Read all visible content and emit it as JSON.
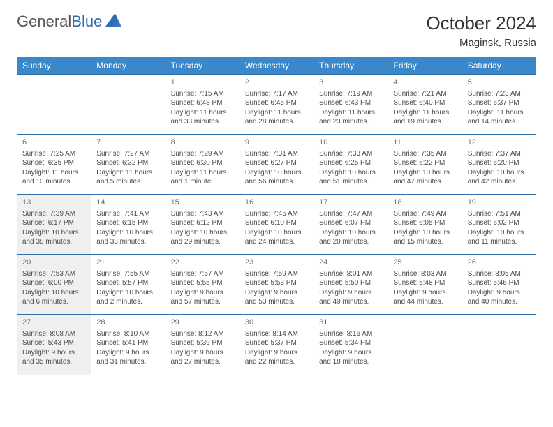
{
  "logo": {
    "word1": "General",
    "word2": "Blue"
  },
  "title": {
    "month_year": "October 2024",
    "location": "Maginsk, Russia"
  },
  "weekdays": [
    "Sunday",
    "Monday",
    "Tuesday",
    "Wednesday",
    "Thursday",
    "Friday",
    "Saturday"
  ],
  "colors": {
    "header_bg": "#3a87ca",
    "header_text": "#ffffff",
    "border": "#2f6fa8",
    "shaded_bg": "#f0f0f0",
    "body_text": "#4a4a4a",
    "logo_gray": "#555555",
    "logo_blue": "#2f6fa8"
  },
  "cell_fontsize": 10,
  "weeks": [
    [
      {
        "empty": true,
        "shaded": false
      },
      {
        "empty": true,
        "shaded": false
      },
      {
        "day": "1",
        "sunrise": "Sunrise: 7:15 AM",
        "sunset": "Sunset: 6:48 PM",
        "daylight": "Daylight: 11 hours and 33 minutes.",
        "shaded": false
      },
      {
        "day": "2",
        "sunrise": "Sunrise: 7:17 AM",
        "sunset": "Sunset: 6:45 PM",
        "daylight": "Daylight: 11 hours and 28 minutes.",
        "shaded": false
      },
      {
        "day": "3",
        "sunrise": "Sunrise: 7:19 AM",
        "sunset": "Sunset: 6:43 PM",
        "daylight": "Daylight: 11 hours and 23 minutes.",
        "shaded": false
      },
      {
        "day": "4",
        "sunrise": "Sunrise: 7:21 AM",
        "sunset": "Sunset: 6:40 PM",
        "daylight": "Daylight: 11 hours and 19 minutes.",
        "shaded": false
      },
      {
        "day": "5",
        "sunrise": "Sunrise: 7:23 AM",
        "sunset": "Sunset: 6:37 PM",
        "daylight": "Daylight: 11 hours and 14 minutes.",
        "shaded": false
      }
    ],
    [
      {
        "day": "6",
        "sunrise": "Sunrise: 7:25 AM",
        "sunset": "Sunset: 6:35 PM",
        "daylight": "Daylight: 11 hours and 10 minutes.",
        "shaded": false
      },
      {
        "day": "7",
        "sunrise": "Sunrise: 7:27 AM",
        "sunset": "Sunset: 6:32 PM",
        "daylight": "Daylight: 11 hours and 5 minutes.",
        "shaded": false
      },
      {
        "day": "8",
        "sunrise": "Sunrise: 7:29 AM",
        "sunset": "Sunset: 6:30 PM",
        "daylight": "Daylight: 11 hours and 1 minute.",
        "shaded": false
      },
      {
        "day": "9",
        "sunrise": "Sunrise: 7:31 AM",
        "sunset": "Sunset: 6:27 PM",
        "daylight": "Daylight: 10 hours and 56 minutes.",
        "shaded": false
      },
      {
        "day": "10",
        "sunrise": "Sunrise: 7:33 AM",
        "sunset": "Sunset: 6:25 PM",
        "daylight": "Daylight: 10 hours and 51 minutes.",
        "shaded": false
      },
      {
        "day": "11",
        "sunrise": "Sunrise: 7:35 AM",
        "sunset": "Sunset: 6:22 PM",
        "daylight": "Daylight: 10 hours and 47 minutes.",
        "shaded": false
      },
      {
        "day": "12",
        "sunrise": "Sunrise: 7:37 AM",
        "sunset": "Sunset: 6:20 PM",
        "daylight": "Daylight: 10 hours and 42 minutes.",
        "shaded": false
      }
    ],
    [
      {
        "day": "13",
        "sunrise": "Sunrise: 7:39 AM",
        "sunset": "Sunset: 6:17 PM",
        "daylight": "Daylight: 10 hours and 38 minutes.",
        "shaded": true
      },
      {
        "day": "14",
        "sunrise": "Sunrise: 7:41 AM",
        "sunset": "Sunset: 6:15 PM",
        "daylight": "Daylight: 10 hours and 33 minutes.",
        "shaded": false
      },
      {
        "day": "15",
        "sunrise": "Sunrise: 7:43 AM",
        "sunset": "Sunset: 6:12 PM",
        "daylight": "Daylight: 10 hours and 29 minutes.",
        "shaded": false
      },
      {
        "day": "16",
        "sunrise": "Sunrise: 7:45 AM",
        "sunset": "Sunset: 6:10 PM",
        "daylight": "Daylight: 10 hours and 24 minutes.",
        "shaded": false
      },
      {
        "day": "17",
        "sunrise": "Sunrise: 7:47 AM",
        "sunset": "Sunset: 6:07 PM",
        "daylight": "Daylight: 10 hours and 20 minutes.",
        "shaded": false
      },
      {
        "day": "18",
        "sunrise": "Sunrise: 7:49 AM",
        "sunset": "Sunset: 6:05 PM",
        "daylight": "Daylight: 10 hours and 15 minutes.",
        "shaded": false
      },
      {
        "day": "19",
        "sunrise": "Sunrise: 7:51 AM",
        "sunset": "Sunset: 6:02 PM",
        "daylight": "Daylight: 10 hours and 11 minutes.",
        "shaded": false
      }
    ],
    [
      {
        "day": "20",
        "sunrise": "Sunrise: 7:53 AM",
        "sunset": "Sunset: 6:00 PM",
        "daylight": "Daylight: 10 hours and 6 minutes.",
        "shaded": true
      },
      {
        "day": "21",
        "sunrise": "Sunrise: 7:55 AM",
        "sunset": "Sunset: 5:57 PM",
        "daylight": "Daylight: 10 hours and 2 minutes.",
        "shaded": false
      },
      {
        "day": "22",
        "sunrise": "Sunrise: 7:57 AM",
        "sunset": "Sunset: 5:55 PM",
        "daylight": "Daylight: 9 hours and 57 minutes.",
        "shaded": false
      },
      {
        "day": "23",
        "sunrise": "Sunrise: 7:59 AM",
        "sunset": "Sunset: 5:53 PM",
        "daylight": "Daylight: 9 hours and 53 minutes.",
        "shaded": false
      },
      {
        "day": "24",
        "sunrise": "Sunrise: 8:01 AM",
        "sunset": "Sunset: 5:50 PM",
        "daylight": "Daylight: 9 hours and 49 minutes.",
        "shaded": false
      },
      {
        "day": "25",
        "sunrise": "Sunrise: 8:03 AM",
        "sunset": "Sunset: 5:48 PM",
        "daylight": "Daylight: 9 hours and 44 minutes.",
        "shaded": false
      },
      {
        "day": "26",
        "sunrise": "Sunrise: 8:05 AM",
        "sunset": "Sunset: 5:46 PM",
        "daylight": "Daylight: 9 hours and 40 minutes.",
        "shaded": false
      }
    ],
    [
      {
        "day": "27",
        "sunrise": "Sunrise: 8:08 AM",
        "sunset": "Sunset: 5:43 PM",
        "daylight": "Daylight: 9 hours and 35 minutes.",
        "shaded": true
      },
      {
        "day": "28",
        "sunrise": "Sunrise: 8:10 AM",
        "sunset": "Sunset: 5:41 PM",
        "daylight": "Daylight: 9 hours and 31 minutes.",
        "shaded": false
      },
      {
        "day": "29",
        "sunrise": "Sunrise: 8:12 AM",
        "sunset": "Sunset: 5:39 PM",
        "daylight": "Daylight: 9 hours and 27 minutes.",
        "shaded": false
      },
      {
        "day": "30",
        "sunrise": "Sunrise: 8:14 AM",
        "sunset": "Sunset: 5:37 PM",
        "daylight": "Daylight: 9 hours and 22 minutes.",
        "shaded": false
      },
      {
        "day": "31",
        "sunrise": "Sunrise: 8:16 AM",
        "sunset": "Sunset: 5:34 PM",
        "daylight": "Daylight: 9 hours and 18 minutes.",
        "shaded": false
      },
      {
        "empty": true,
        "shaded": false
      },
      {
        "empty": true,
        "shaded": false
      }
    ]
  ]
}
